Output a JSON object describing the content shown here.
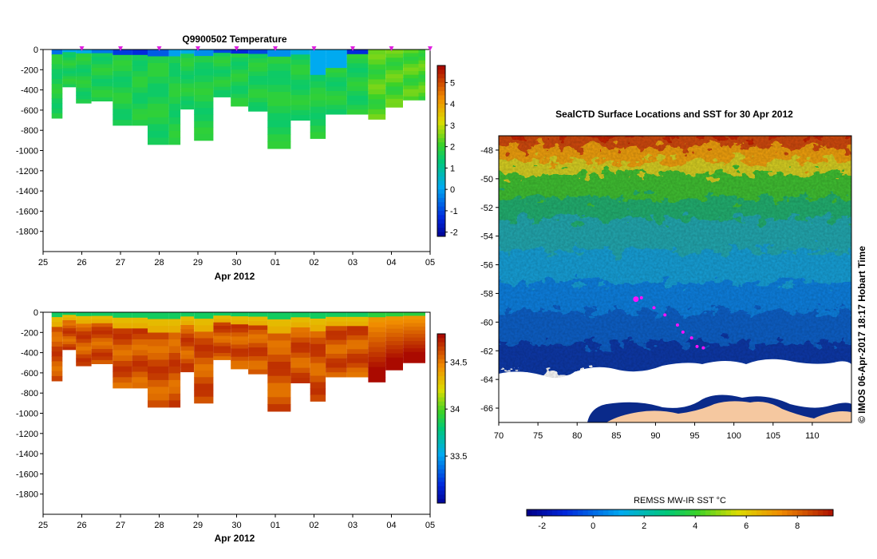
{
  "chart_data": [
    {
      "type": "heatmap",
      "title": "Q9900502  Temperature",
      "xlabel": "Apr 2012",
      "x_ticks": [
        "25",
        "26",
        "27",
        "28",
        "29",
        "30",
        "01",
        "02",
        "03",
        "04",
        "05"
      ],
      "y_ticks": [
        "0",
        "-200",
        "-400",
        "-600",
        "-800",
        "-1000",
        "-1200",
        "-1400",
        "-1600",
        "-1800"
      ],
      "ylim": [
        -2000,
        0
      ],
      "colorbar_ticks": [
        "5",
        "4",
        "3",
        "2",
        "1",
        "0",
        "-1",
        "-2"
      ],
      "colorbar_range": [
        -2.2,
        5.8
      ],
      "profile_days": [
        0.22,
        0.5,
        0.85,
        1.25,
        1.8,
        2.3,
        2.7,
        3.25,
        3.55,
        3.9,
        4.4,
        4.85,
        5.3,
        5.8,
        6.4,
        6.9,
        7.3,
        7.85,
        8.4,
        8.85,
        9.3,
        9.7
      ],
      "profile_max_depths": [
        680,
        370,
        530,
        510,
        750,
        750,
        940,
        940,
        590,
        900,
        470,
        560,
        610,
        980,
        700,
        880,
        640,
        640,
        690,
        570,
        500,
        500
      ]
    },
    {
      "type": "heatmap",
      "title": "",
      "xlabel": "Apr 2012",
      "x_ticks": [
        "25",
        "26",
        "27",
        "28",
        "29",
        "30",
        "01",
        "02",
        "03",
        "04",
        "05"
      ],
      "y_ticks": [
        "0",
        "-200",
        "-400",
        "-600",
        "-800",
        "-1000",
        "-1200",
        "-1400",
        "-1600",
        "-1800"
      ],
      "ylim": [
        -2000,
        0
      ],
      "colorbar_ticks": [
        "34.5",
        "34",
        "33.5"
      ],
      "colorbar_range": [
        33.0,
        34.8
      ]
    },
    {
      "type": "heatmap",
      "title": "SealCTD Surface Locations and SST for 30 Apr 2012",
      "x_ticks": [
        "70",
        "75",
        "80",
        "85",
        "90",
        "95",
        "100",
        "105",
        "110"
      ],
      "y_ticks": [
        "-48",
        "-50",
        "-52",
        "-54",
        "-56",
        "-58",
        "-60",
        "-62",
        "-64",
        "-66"
      ],
      "xlim": [
        70,
        115
      ],
      "ylim": [
        -67,
        -47
      ],
      "colorbar_label": "REMSS MW-IR SST °C",
      "colorbar_ticks": [
        "-2",
        "0",
        "2",
        "4",
        "6",
        "8"
      ],
      "colorbar_range": [
        -2.6,
        9.4
      ],
      "side_label": "©  IMOS 06-Apr-2017 18:17 Hobart Time",
      "track_points": [
        [
          87.5,
          -58.4
        ],
        [
          88.2,
          -58.3
        ],
        [
          89.8,
          -59.0
        ],
        [
          91.2,
          -59.5
        ],
        [
          92.8,
          -60.2
        ],
        [
          93.5,
          -60.7
        ],
        [
          94.6,
          -61.1
        ],
        [
          95.3,
          -61.7
        ],
        [
          96.1,
          -61.8
        ]
      ]
    }
  ]
}
